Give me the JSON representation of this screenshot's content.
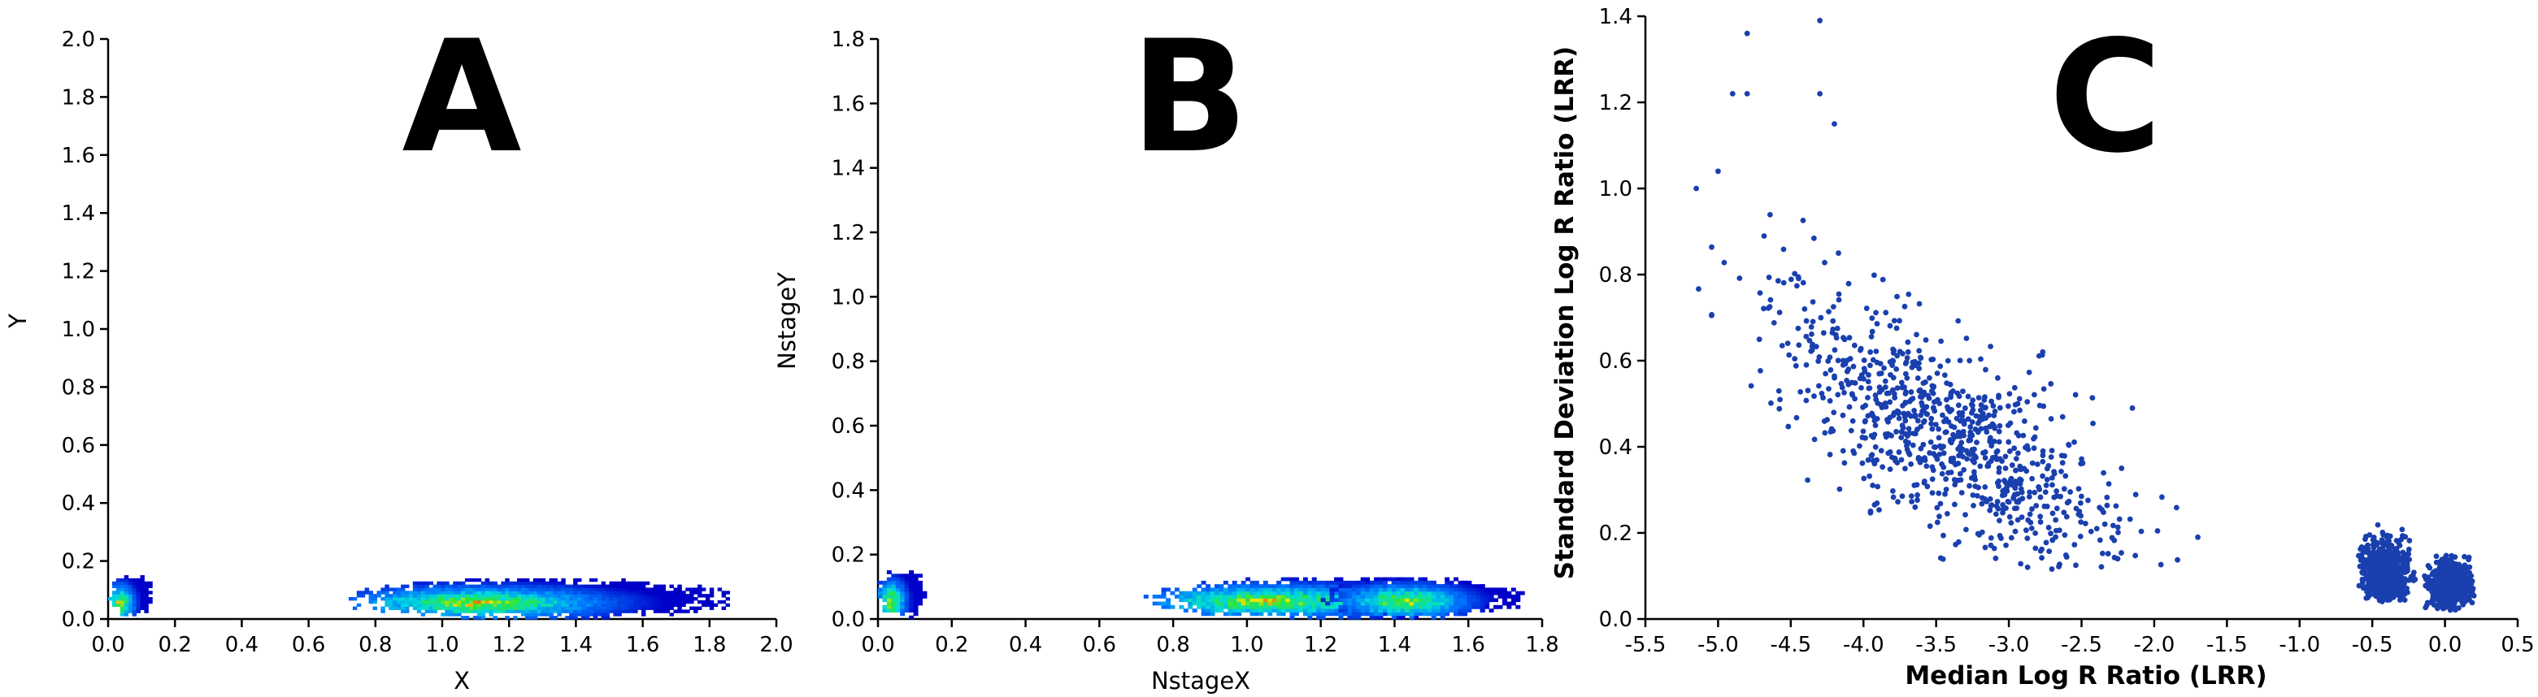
{
  "chart_data": [
    {
      "type": "heatmap",
      "panel_label": "A",
      "xlabel": "X",
      "ylabel": "Y",
      "xlim": [
        0.0,
        2.0
      ],
      "ylim": [
        0.0,
        2.0
      ],
      "x_ticks": [
        "0.0",
        "0.2",
        "0.4",
        "0.6",
        "0.8",
        "1.0",
        "1.2",
        "1.4",
        "1.6",
        "1.8",
        "2.0"
      ],
      "y_ticks": [
        "0.0",
        "0.2",
        "0.4",
        "0.6",
        "0.8",
        "1.0",
        "1.2",
        "1.4",
        "1.6",
        "1.8",
        "2.0"
      ],
      "clusters": [
        {
          "x_range": [
            0.0,
            0.13
          ],
          "y_range": [
            0.0,
            0.15
          ],
          "peak": [
            0.03,
            0.05
          ]
        },
        {
          "x_range": [
            0.72,
            1.85
          ],
          "y_range": [
            0.0,
            0.13
          ],
          "peak": [
            1.1,
            0.05
          ]
        }
      ]
    },
    {
      "type": "heatmap",
      "panel_label": "B",
      "xlabel": "NstageX",
      "ylabel": "NstageY",
      "xlim": [
        0.0,
        1.8
      ],
      "ylim": [
        0.0,
        1.8
      ],
      "x_ticks": [
        "0.0",
        "0.2",
        "0.4",
        "0.6",
        "0.8",
        "1.0",
        "1.2",
        "1.4",
        "1.6",
        "1.8"
      ],
      "y_ticks": [
        "0.0",
        "0.2",
        "0.4",
        "0.6",
        "0.8",
        "1.0",
        "1.2",
        "1.4",
        "1.6",
        "1.8"
      ],
      "clusters": [
        {
          "x_range": [
            0.0,
            0.12
          ],
          "y_range": [
            0.0,
            0.15
          ],
          "peak": [
            0.03,
            0.05
          ]
        },
        {
          "x_range": [
            0.72,
            1.75
          ],
          "y_range": [
            0.0,
            0.12
          ],
          "peak": [
            1.05,
            0.05
          ]
        },
        {
          "x_range": [
            1.2,
            1.7
          ],
          "y_range": [
            0.0,
            0.12
          ],
          "peak": [
            1.42,
            0.05
          ]
        }
      ]
    },
    {
      "type": "scatter",
      "panel_label": "C",
      "xlabel": "Median Log R Ratio (LRR)",
      "ylabel": "Standard Deviation Log R Ratio (LRR)",
      "xlim": [
        -5.5,
        0.5
      ],
      "ylim": [
        0.0,
        1.4
      ],
      "x_ticks": [
        "-5.5",
        "-5.0",
        "-4.5",
        "-4.0",
        "-3.5",
        "-3.0",
        "-2.5",
        "-2.0",
        "-1.5",
        "-1.0",
        "-0.5",
        "0.0",
        "0.5"
      ],
      "y_ticks": [
        "0.0",
        "0.2",
        "0.4",
        "0.6",
        "0.8",
        "1.0",
        "1.2",
        "1.4"
      ],
      "marker_color": "#1a3fae",
      "clusters": [
        {
          "name": "",
          "x_center": -3.4,
          "y_center": 0.42,
          "x_range": [
            -5.15,
            -1.7
          ],
          "y_range": [
            0.11,
            1.39
          ]
        },
        {
          "name": "",
          "x_center": -0.4,
          "y_center": 0.11,
          "x_range": [
            -0.6,
            -0.2
          ],
          "y_range": [
            0.04,
            0.22
          ]
        },
        {
          "name": "",
          "x_center": 0.03,
          "y_center": 0.08,
          "x_range": [
            -0.15,
            0.2
          ],
          "y_range": [
            0.02,
            0.15
          ]
        }
      ],
      "labeled_points": [
        {
          "x": -4.3,
          "y": 1.39
        },
        {
          "x": -4.8,
          "y": 1.36
        },
        {
          "x": -4.9,
          "y": 1.22
        },
        {
          "x": -4.8,
          "y": 1.22
        },
        {
          "x": -4.3,
          "y": 1.22
        },
        {
          "x": -4.2,
          "y": 1.15
        },
        {
          "x": -5.15,
          "y": 1.0
        },
        {
          "x": -5.0,
          "y": 1.04
        },
        {
          "x": -1.7,
          "y": 0.19
        }
      ]
    }
  ]
}
